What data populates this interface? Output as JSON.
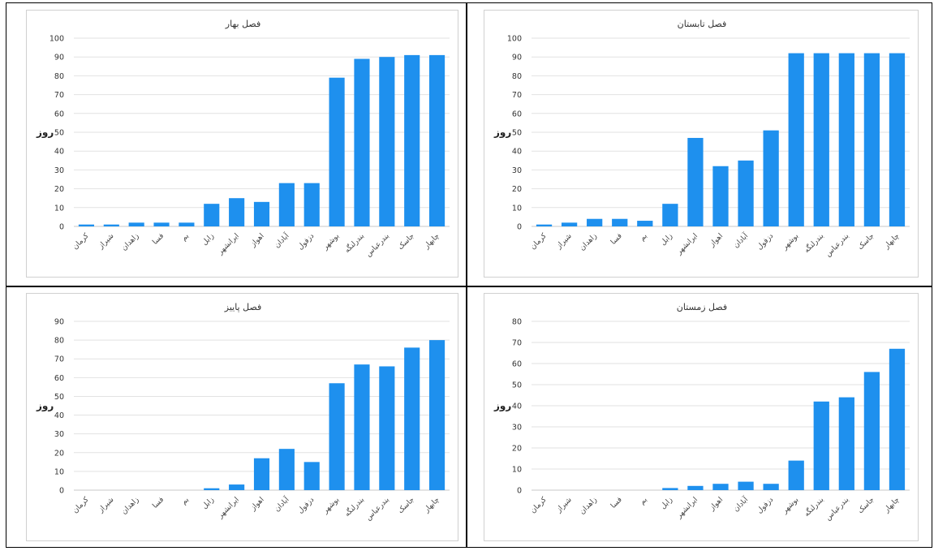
{
  "chart_data": [
    {
      "id": "spring",
      "type": "bar",
      "title": "فصل بهار",
      "ylabel": "روز",
      "ylim": [
        0,
        100
      ],
      "yticks": [
        0,
        10,
        20,
        30,
        40,
        50,
        60,
        70,
        80,
        90,
        100
      ],
      "categories": [
        "کرمان",
        "شیراز",
        "زاهدان",
        "فسا",
        "بم",
        "زابل",
        "ایرانشهر",
        "اهواز",
        "آبادان",
        "دزفول",
        "بوشهر",
        "بندرلنگه",
        "بندرعباس",
        "جاسک",
        "چابهار"
      ],
      "values": [
        1,
        1,
        2,
        2,
        2,
        12,
        15,
        13,
        23,
        23,
        79,
        89,
        90,
        91,
        91
      ],
      "grid": true,
      "legend": "none"
    },
    {
      "id": "summer",
      "type": "bar",
      "title": "فصل تابستان",
      "ylabel": "روز",
      "ylim": [
        0,
        100
      ],
      "yticks": [
        0,
        10,
        20,
        30,
        40,
        50,
        60,
        70,
        80,
        90,
        100
      ],
      "categories": [
        "کرمان",
        "شیراز",
        "زاهدان",
        "فسا",
        "بم",
        "زابل",
        "ایرانشهر",
        "اهواز",
        "آبادان",
        "دزفول",
        "بوشهر",
        "بندرلنگه",
        "بندرعباس",
        "جاسک",
        "چابهار"
      ],
      "values": [
        1,
        2,
        4,
        4,
        3,
        12,
        47,
        32,
        35,
        51,
        92,
        92,
        92,
        92,
        92
      ],
      "grid": true,
      "legend": "none"
    },
    {
      "id": "autumn",
      "type": "bar",
      "title": "فصل پاییز",
      "ylabel": "روز",
      "ylim": [
        0,
        90
      ],
      "yticks": [
        0,
        10,
        20,
        30,
        40,
        50,
        60,
        70,
        80,
        90
      ],
      "categories": [
        "کرمان",
        "شیراز",
        "زاهدان",
        "فسا",
        "بم",
        "زابل",
        "ایرانشهر",
        "اهواز",
        "آبادان",
        "دزفول",
        "بوشهر",
        "بندرلنگه",
        "بندرعباس",
        "جاسک",
        "چابهار"
      ],
      "values": [
        0,
        0,
        0,
        0,
        0,
        1,
        3,
        17,
        22,
        15,
        57,
        67,
        66,
        76,
        80
      ],
      "grid": true,
      "legend": "none"
    },
    {
      "id": "winter",
      "type": "bar",
      "title": "فصل زمستان",
      "ylabel": "روز",
      "ylim": [
        0,
        80
      ],
      "yticks": [
        0,
        10,
        20,
        30,
        40,
        50,
        60,
        70,
        80
      ],
      "categories": [
        "کرمان",
        "شیراز",
        "زاهدان",
        "فسا",
        "بم",
        "زابل",
        "ایرانشهر",
        "اهواز",
        "آبادان",
        "دزفول",
        "بوشهر",
        "بندرلنگه",
        "بندرعباس",
        "جاسک",
        "چابهار"
      ],
      "values": [
        0,
        0,
        0,
        0,
        0,
        1,
        2,
        3,
        4,
        3,
        14,
        42,
        44,
        56,
        67
      ],
      "grid": true,
      "legend": "none"
    }
  ],
  "style": {
    "bar_color": "#1e90ee"
  }
}
